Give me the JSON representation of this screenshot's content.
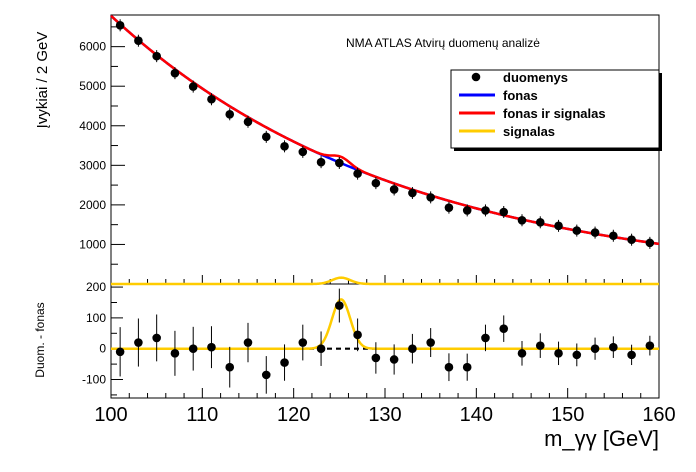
{
  "chart_data": {
    "type": "scatter",
    "top_panel": {
      "annotation": "NMA ATLAS Atvirų duomenų analizė",
      "ylabel": "Įvykiai / 2 GeV",
      "ylim": [
        0,
        6800
      ],
      "yticks": [
        1000,
        2000,
        3000,
        4000,
        5000,
        6000
      ],
      "legend": {
        "placement": "top-right",
        "entries": [
          {
            "label": "duomenys",
            "kind": "marker",
            "color": "#000000"
          },
          {
            "label": "fonas",
            "kind": "line",
            "color": "#0000ff"
          },
          {
            "label": "fonas ir signalas",
            "kind": "line",
            "color": "#ff0000"
          },
          {
            "label": "signalas",
            "kind": "line",
            "color": "#ffcc00"
          }
        ]
      },
      "series": [
        {
          "name": "duomenys",
          "x": [
            101,
            103,
            105,
            107,
            109,
            111,
            113,
            115,
            117,
            119,
            121,
            123,
            125,
            127,
            129,
            131,
            133,
            135,
            137,
            139,
            141,
            143,
            145,
            147,
            149,
            151,
            153,
            155,
            157,
            159
          ],
          "y": [
            6540,
            6150,
            5760,
            5330,
            4990,
            4670,
            4290,
            4100,
            3720,
            3480,
            3340,
            3080,
            3060,
            2790,
            2550,
            2390,
            2300,
            2190,
            1930,
            1860,
            1860,
            1820,
            1610,
            1560,
            1470,
            1350,
            1300,
            1220,
            1120,
            1040
          ]
        },
        {
          "name": "fonas",
          "fit": "exponential",
          "x_start": 100,
          "y_start": 6780,
          "x_end": 160,
          "y_end": 1015,
          "color": "#0000ff"
        },
        {
          "name": "fonas ir signalas",
          "fit": "exponential + gaussian",
          "color": "#ff0000"
        },
        {
          "name": "signalas",
          "fit": "gaussian",
          "mean": 125.2,
          "sigma": 1.0,
          "amplitude": 160,
          "color": "#ffcc00"
        }
      ]
    },
    "bottom_panel": {
      "ylabel": "Duom. - fonas",
      "ylim": [
        -160,
        210
      ],
      "yticks": [
        -100,
        0,
        100,
        200
      ],
      "xlabel": "m_γγ [GeV]",
      "xlim": [
        100,
        160
      ],
      "xticks": [
        100,
        110,
        120,
        130,
        140,
        150,
        160
      ],
      "series": [
        {
          "name": "duomenys",
          "x": [
            101,
            103,
            105,
            107,
            109,
            111,
            113,
            115,
            117,
            119,
            121,
            123,
            125,
            127,
            129,
            131,
            133,
            135,
            137,
            139,
            141,
            143,
            145,
            147,
            149,
            151,
            153,
            155,
            157,
            159
          ],
          "y": [
            -10,
            20,
            35,
            -15,
            0,
            5,
            -60,
            20,
            -85,
            -45,
            20,
            0,
            140,
            45,
            -30,
            -35,
            0,
            20,
            -60,
            -60,
            35,
            65,
            -15,
            10,
            -15,
            -20,
            0,
            5,
            -20,
            10
          ],
          "err": [
            80,
            78,
            76,
            73,
            71,
            68,
            66,
            64,
            61,
            59,
            58,
            56,
            55,
            53,
            51,
            49,
            48,
            47,
            45,
            44,
            43,
            43,
            40,
            40,
            38,
            37,
            36,
            35,
            33,
            32
          ]
        },
        {
          "name": "fonas",
          "kind": "dashed-zero-line",
          "color": "#000000"
        },
        {
          "name": "signalas",
          "kind": "gaussian",
          "mean": 125.2,
          "sigma": 1.0,
          "amplitude": 160,
          "color": "#ffcc00"
        }
      ]
    }
  }
}
